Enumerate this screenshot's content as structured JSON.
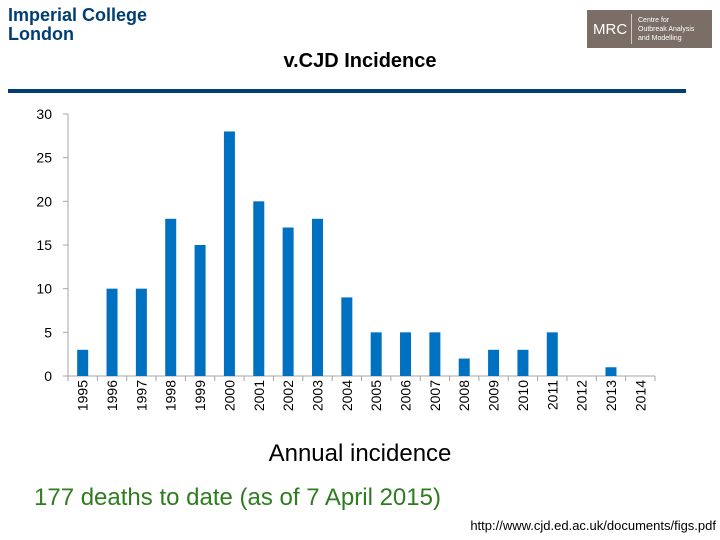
{
  "logos": {
    "imperial_line1": "Imperial College",
    "imperial_line2": "London",
    "mrc_letters": "MRC",
    "mrc_line1": "Centre for",
    "mrc_line2": "Outbreak Analysis",
    "mrc_line3": "and Modelling",
    "brand_color": "#003e74",
    "mrc_color": "#7a6e67"
  },
  "slide": {
    "title": "v.CJD Incidence",
    "subtitle": "Annual incidence",
    "note": "177 deaths to date (as of 7 April 2015)",
    "source": "http://www.cjd.ed.ac.uk/documents/figs.pdf"
  },
  "chart_data": {
    "type": "bar",
    "categories": [
      "1995",
      "1996",
      "1997",
      "1998",
      "1999",
      "2000",
      "2001",
      "2002",
      "2003",
      "2004",
      "2005",
      "2006",
      "2007",
      "2008",
      "2009",
      "2010",
      "2011",
      "2012",
      "2013",
      "2014"
    ],
    "values": [
      3,
      10,
      10,
      18,
      15,
      28,
      20,
      17,
      18,
      9,
      5,
      5,
      5,
      2,
      3,
      3,
      5,
      0,
      1,
      0
    ],
    "ylim": [
      0,
      30
    ],
    "yticks": [
      0,
      5,
      10,
      15,
      20,
      25,
      30
    ],
    "bar_color": "#0070c0",
    "grid": false,
    "legend": "none"
  }
}
